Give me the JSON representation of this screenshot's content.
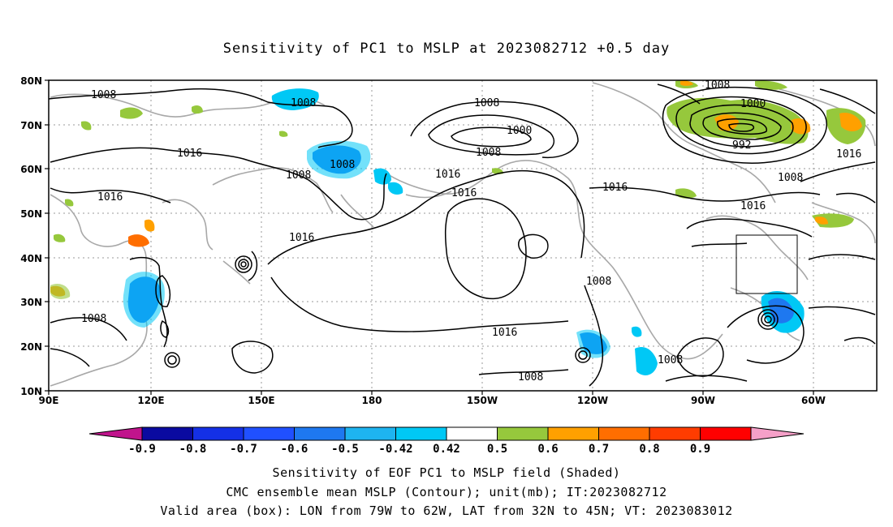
{
  "title": "Sensitivity of PC1 to MSLP at 2023082712 +0.5 day",
  "lat_labels": [
    "80N",
    "70N",
    "60N",
    "50N",
    "40N",
    "30N",
    "20N",
    "10N"
  ],
  "lon_labels": [
    "90E",
    "120E",
    "150E",
    "180",
    "150W",
    "120W",
    "90W",
    "60W"
  ],
  "colorbar": {
    "tick_labels": [
      "-0.9",
      "-0.8",
      "-0.7",
      "-0.6",
      "-0.5",
      "-0.42",
      "0.42",
      "0.5",
      "0.6",
      "0.7",
      "0.8",
      "0.9"
    ],
    "colors": [
      "#c0148c",
      "#0a0aa0",
      "#1430e6",
      "#2050ff",
      "#1e78f0",
      "#1eb4f0",
      "#00c8f5",
      "#ffffff",
      "#96c83c",
      "#ffa000",
      "#ff6e00",
      "#ff3c00",
      "#ff0000",
      "#f5a0c8"
    ]
  },
  "isobar_labels": [
    {
      "text": "1008"
    },
    {
      "text": "1008"
    },
    {
      "text": "1016"
    },
    {
      "text": "1016"
    },
    {
      "text": "1008"
    },
    {
      "text": "1008"
    },
    {
      "text": "1008"
    },
    {
      "text": "1016"
    },
    {
      "text": "1008"
    },
    {
      "text": "1000"
    },
    {
      "text": "1008"
    },
    {
      "text": "1016"
    },
    {
      "text": "1016"
    },
    {
      "text": "1016"
    },
    {
      "text": "1016"
    },
    {
      "text": "1008"
    },
    {
      "text": "1008"
    },
    {
      "text": "1008"
    },
    {
      "text": "1008"
    },
    {
      "text": "1000"
    },
    {
      "text": "992"
    },
    {
      "text": "1008"
    },
    {
      "text": "1016"
    },
    {
      "text": "1016"
    }
  ],
  "valid_box": {
    "lon_from": "79W",
    "lon_to": "62W",
    "lat_from": "32N",
    "lat_to": "45N"
  },
  "captions": {
    "line1": "Sensitivity of EOF PC1 to MSLP field (Shaded)",
    "line2": "CMC ensemble mean MSLP (Contour); unit(mb); IT:2023082712",
    "line3": "Valid area (box): LON from 79W to 62W, LAT from 32N to 45N; VT: 2023083012"
  }
}
